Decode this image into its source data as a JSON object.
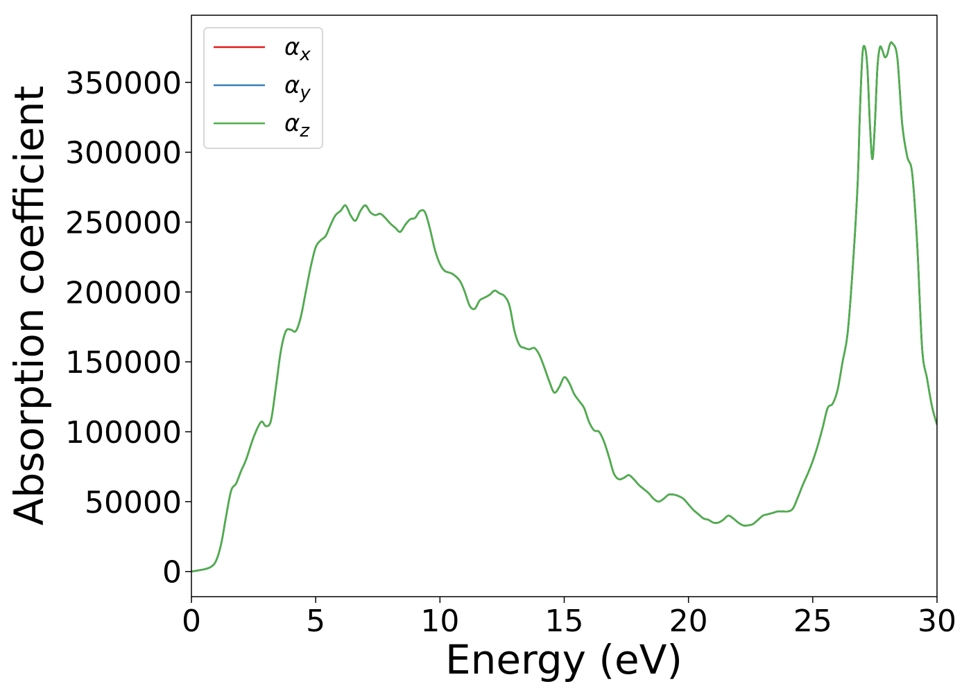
{
  "chart_data": {
    "type": "line",
    "title": "",
    "xlabel": "Energy (eV)",
    "ylabel": "Absorption coefficient",
    "xlim": [
      0,
      30
    ],
    "ylim": [
      -18000,
      398000
    ],
    "xticks": [
      0,
      5,
      10,
      15,
      20,
      25,
      30
    ],
    "yticks": [
      0,
      50000,
      100000,
      150000,
      200000,
      250000,
      300000,
      350000
    ],
    "grid": false,
    "legend_position": "top-left",
    "colors": {
      "alpha_x": "#e41a1c",
      "alpha_y": "#377eb8",
      "alpha_z": "#4daf4a"
    },
    "legend": [
      {
        "symbol": "α",
        "sub": "x",
        "color": "#e41a1c"
      },
      {
        "symbol": "α",
        "sub": "y",
        "color": "#377eb8"
      },
      {
        "symbol": "α",
        "sub": "z",
        "color": "#4daf4a"
      }
    ],
    "x": [
      0,
      0.5,
      0.8,
      1.0,
      1.2,
      1.4,
      1.6,
      1.8,
      2.0,
      2.2,
      2.5,
      2.8,
      3.0,
      3.2,
      3.4,
      3.6,
      3.8,
      4.0,
      4.2,
      4.4,
      4.6,
      4.8,
      5.0,
      5.2,
      5.4,
      5.6,
      5.8,
      6.0,
      6.2,
      6.4,
      6.6,
      6.8,
      7.0,
      7.2,
      7.4,
      7.6,
      7.8,
      8.0,
      8.2,
      8.4,
      8.6,
      8.8,
      9.0,
      9.2,
      9.4,
      9.6,
      9.8,
      10.0,
      10.2,
      10.5,
      10.8,
      11.0,
      11.2,
      11.4,
      11.6,
      11.8,
      12.0,
      12.2,
      12.4,
      12.6,
      12.8,
      13.0,
      13.2,
      13.4,
      13.6,
      13.8,
      14.0,
      14.2,
      14.4,
      14.6,
      14.8,
      15.0,
      15.2,
      15.4,
      15.6,
      15.8,
      16.0,
      16.2,
      16.4,
      16.6,
      16.8,
      17.0,
      17.2,
      17.4,
      17.6,
      17.8,
      18.0,
      18.2,
      18.4,
      18.6,
      18.8,
      19.0,
      19.2,
      19.4,
      19.6,
      19.8,
      20.0,
      20.2,
      20.4,
      20.6,
      20.8,
      21.0,
      21.2,
      21.4,
      21.6,
      21.8,
      22.0,
      22.2,
      22.4,
      22.6,
      22.8,
      23.0,
      23.2,
      23.4,
      23.6,
      23.8,
      24.0,
      24.2,
      24.4,
      24.6,
      24.8,
      25.0,
      25.2,
      25.4,
      25.6,
      25.8,
      26.0,
      26.2,
      26.4,
      26.6,
      26.8,
      26.9,
      27.0,
      27.1,
      27.2,
      27.3,
      27.4,
      27.5,
      27.6,
      27.7,
      27.8,
      27.9,
      28.0,
      28.1,
      28.2,
      28.4,
      28.6,
      28.8,
      29.0,
      29.2,
      29.4,
      29.6,
      29.8,
      30.0
    ],
    "series": [
      {
        "name": "α_x",
        "values": [
          0,
          1500,
          3500,
          8000,
          20000,
          40000,
          58000,
          63000,
          72000,
          80000,
          96000,
          107000,
          104000,
          108000,
          132000,
          158000,
          172000,
          173000,
          172000,
          182000,
          200000,
          218000,
          232000,
          237000,
          240000,
          248000,
          255000,
          258000,
          262000,
          255000,
          251000,
          258000,
          262000,
          257000,
          255000,
          256000,
          253000,
          249000,
          246000,
          243000,
          248000,
          252000,
          253000,
          258000,
          257000,
          245000,
          230000,
          220000,
          215000,
          213000,
          208000,
          200000,
          190000,
          188000,
          194000,
          196000,
          198000,
          201000,
          199000,
          197000,
          190000,
          172000,
          162000,
          160000,
          159000,
          160000,
          155000,
          146000,
          136000,
          128000,
          132000,
          139000,
          135000,
          127000,
          122000,
          117000,
          107000,
          101000,
          100000,
          93000,
          82000,
          70000,
          66000,
          67000,
          69000,
          66000,
          62000,
          59000,
          56000,
          52000,
          50000,
          52000,
          55000,
          55000,
          54000,
          52000,
          48000,
          44000,
          41000,
          38000,
          37000,
          35000,
          35000,
          37000,
          40000,
          38000,
          35000,
          33000,
          33000,
          34000,
          37000,
          40000,
          41000,
          42000,
          43000,
          43000,
          43000,
          45000,
          53000,
          62000,
          70000,
          79000,
          90000,
          103000,
          117000,
          120000,
          130000,
          150000,
          170000,
          215000,
          275000,
          330000,
          370000,
          375000,
          360000,
          320000,
          295000,
          320000,
          360000,
          375000,
          373000,
          368000,
          370000,
          377000,
          378000,
          368000,
          320000,
          297000,
          285000,
          235000,
          160000,
          138000,
          118000,
          105000
        ]
      },
      {
        "name": "α_y",
        "values": [
          0,
          1500,
          3500,
          8000,
          20000,
          40000,
          58000,
          63000,
          72000,
          80000,
          96000,
          107000,
          104000,
          108000,
          132000,
          158000,
          172000,
          173000,
          172000,
          182000,
          200000,
          218000,
          232000,
          237000,
          240000,
          248000,
          255000,
          258000,
          262000,
          255000,
          251000,
          258000,
          262000,
          257000,
          255000,
          256000,
          253000,
          249000,
          246000,
          243000,
          248000,
          252000,
          253000,
          258000,
          257000,
          245000,
          230000,
          220000,
          215000,
          213000,
          208000,
          200000,
          190000,
          188000,
          194000,
          196000,
          198000,
          201000,
          199000,
          197000,
          190000,
          172000,
          162000,
          160000,
          159000,
          160000,
          155000,
          146000,
          136000,
          128000,
          132000,
          139000,
          135000,
          127000,
          122000,
          117000,
          107000,
          101000,
          100000,
          93000,
          82000,
          70000,
          66000,
          67000,
          69000,
          66000,
          62000,
          59000,
          56000,
          52000,
          50000,
          52000,
          55000,
          55000,
          54000,
          52000,
          48000,
          44000,
          41000,
          38000,
          37000,
          35000,
          35000,
          37000,
          40000,
          38000,
          35000,
          33000,
          33000,
          34000,
          37000,
          40000,
          41000,
          42000,
          43000,
          43000,
          43000,
          45000,
          53000,
          62000,
          70000,
          79000,
          90000,
          103000,
          117000,
          120000,
          130000,
          150000,
          170000,
          215000,
          275000,
          330000,
          370000,
          375000,
          360000,
          320000,
          295000,
          320000,
          360000,
          375000,
          373000,
          368000,
          370000,
          377000,
          378000,
          368000,
          320000,
          297000,
          285000,
          235000,
          160000,
          138000,
          118000,
          105000
        ]
      },
      {
        "name": "α_z",
        "values": [
          0,
          1500,
          3500,
          8000,
          20000,
          40000,
          58000,
          63000,
          72000,
          80000,
          96000,
          107000,
          104000,
          108000,
          132000,
          158000,
          172000,
          173000,
          172000,
          182000,
          200000,
          218000,
          232000,
          237000,
          240000,
          248000,
          255000,
          258000,
          262000,
          255000,
          251000,
          258000,
          262000,
          257000,
          255000,
          256000,
          253000,
          249000,
          246000,
          243000,
          248000,
          252000,
          253000,
          258000,
          257000,
          245000,
          230000,
          220000,
          215000,
          213000,
          208000,
          200000,
          190000,
          188000,
          194000,
          196000,
          198000,
          201000,
          199000,
          197000,
          190000,
          172000,
          162000,
          160000,
          159000,
          160000,
          155000,
          146000,
          136000,
          128000,
          132000,
          139000,
          135000,
          127000,
          122000,
          117000,
          107000,
          101000,
          100000,
          93000,
          82000,
          70000,
          66000,
          67000,
          69000,
          66000,
          62000,
          59000,
          56000,
          52000,
          50000,
          52000,
          55000,
          55000,
          54000,
          52000,
          48000,
          44000,
          41000,
          38000,
          37000,
          35000,
          35000,
          37000,
          40000,
          38000,
          35000,
          33000,
          33000,
          34000,
          37000,
          40000,
          41000,
          42000,
          43000,
          43000,
          43000,
          45000,
          53000,
          62000,
          70000,
          79000,
          90000,
          103000,
          117000,
          120000,
          130000,
          150000,
          170000,
          215000,
          275000,
          330000,
          370000,
          375000,
          360000,
          320000,
          295000,
          320000,
          360000,
          375000,
          373000,
          368000,
          370000,
          377000,
          378000,
          368000,
          320000,
          297000,
          285000,
          235000,
          160000,
          138000,
          118000,
          105000
        ]
      }
    ]
  }
}
